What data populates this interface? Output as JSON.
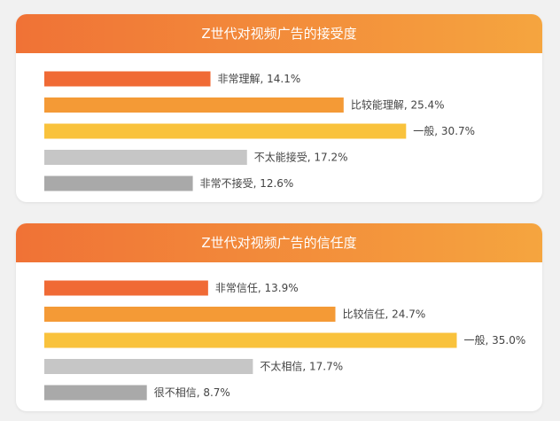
{
  "chart_data": [
    {
      "type": "bar",
      "orientation": "horizontal",
      "title": "Z世代对视频广告的接受度",
      "categories": [
        "非常理解",
        "比较能理解",
        "一般",
        "不太能接受",
        "非常不接受"
      ],
      "values": [
        14.1,
        25.4,
        30.7,
        17.2,
        12.6
      ],
      "labels": [
        "非常理解, 14.1%",
        "比较能理解, 25.4%",
        "一般, 30.7%",
        "不太能接受, 17.2%",
        "非常不接受, 12.6%"
      ],
      "colors": [
        "#f06a35",
        "#f49a36",
        "#f9c23c",
        "#c6c6c6",
        "#a9a9a9"
      ]
    },
    {
      "type": "bar",
      "orientation": "horizontal",
      "title": "Z世代对视频广告的信任度",
      "categories": [
        "非常信任",
        "比较信任",
        "一般",
        "不太相信",
        "很不相信"
      ],
      "values": [
        13.9,
        24.7,
        35.0,
        17.7,
        8.7
      ],
      "labels": [
        "非常信任, 13.9%",
        "比较信任, 24.7%",
        "一般, 35.0%",
        "不太相信, 17.7%",
        "很不相信, 8.7%"
      ],
      "colors": [
        "#f06a35",
        "#f49a36",
        "#f9c23c",
        "#c6c6c6",
        "#a9a9a9"
      ]
    }
  ]
}
